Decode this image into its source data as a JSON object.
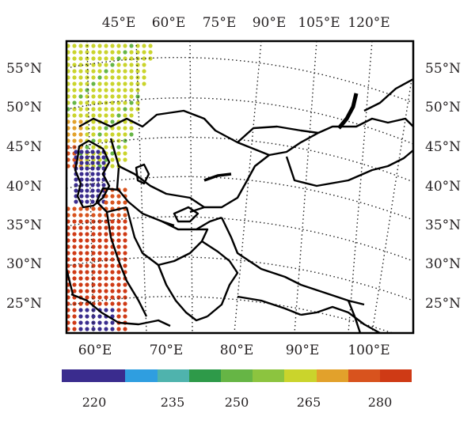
{
  "map": {
    "top_lon_labels": [
      "45°E",
      "60°E",
      "75°E",
      "90°E",
      "105°E",
      "120°E"
    ],
    "bottom_lon_labels": [
      "60°E",
      "70°E",
      "80°E",
      "90°E",
      "100°E"
    ],
    "left_lat_labels": [
      "55°N",
      "50°N",
      "45°N",
      "40°N",
      "35°N",
      "30°N",
      "25°N"
    ],
    "right_lat_labels": [
      "55°N",
      "50°N",
      "45°N",
      "40°N",
      "35°N",
      "30°N",
      "25°N"
    ],
    "colorbar": {
      "tick_labels": [
        "220",
        "235",
        "250",
        "265",
        "280"
      ],
      "colors": [
        "#3a2c8e",
        "#3a2c8e",
        "#2f9ee0",
        "#4fb3ad",
        "#2e9a49",
        "#66b545",
        "#8cc43f",
        "#cad42c",
        "#e2a12b",
        "#d8531e",
        "#cf3a15"
      ]
    },
    "colors": {
      "frame": "#000000",
      "border": "#000000",
      "graticule": "#222222"
    }
  }
}
